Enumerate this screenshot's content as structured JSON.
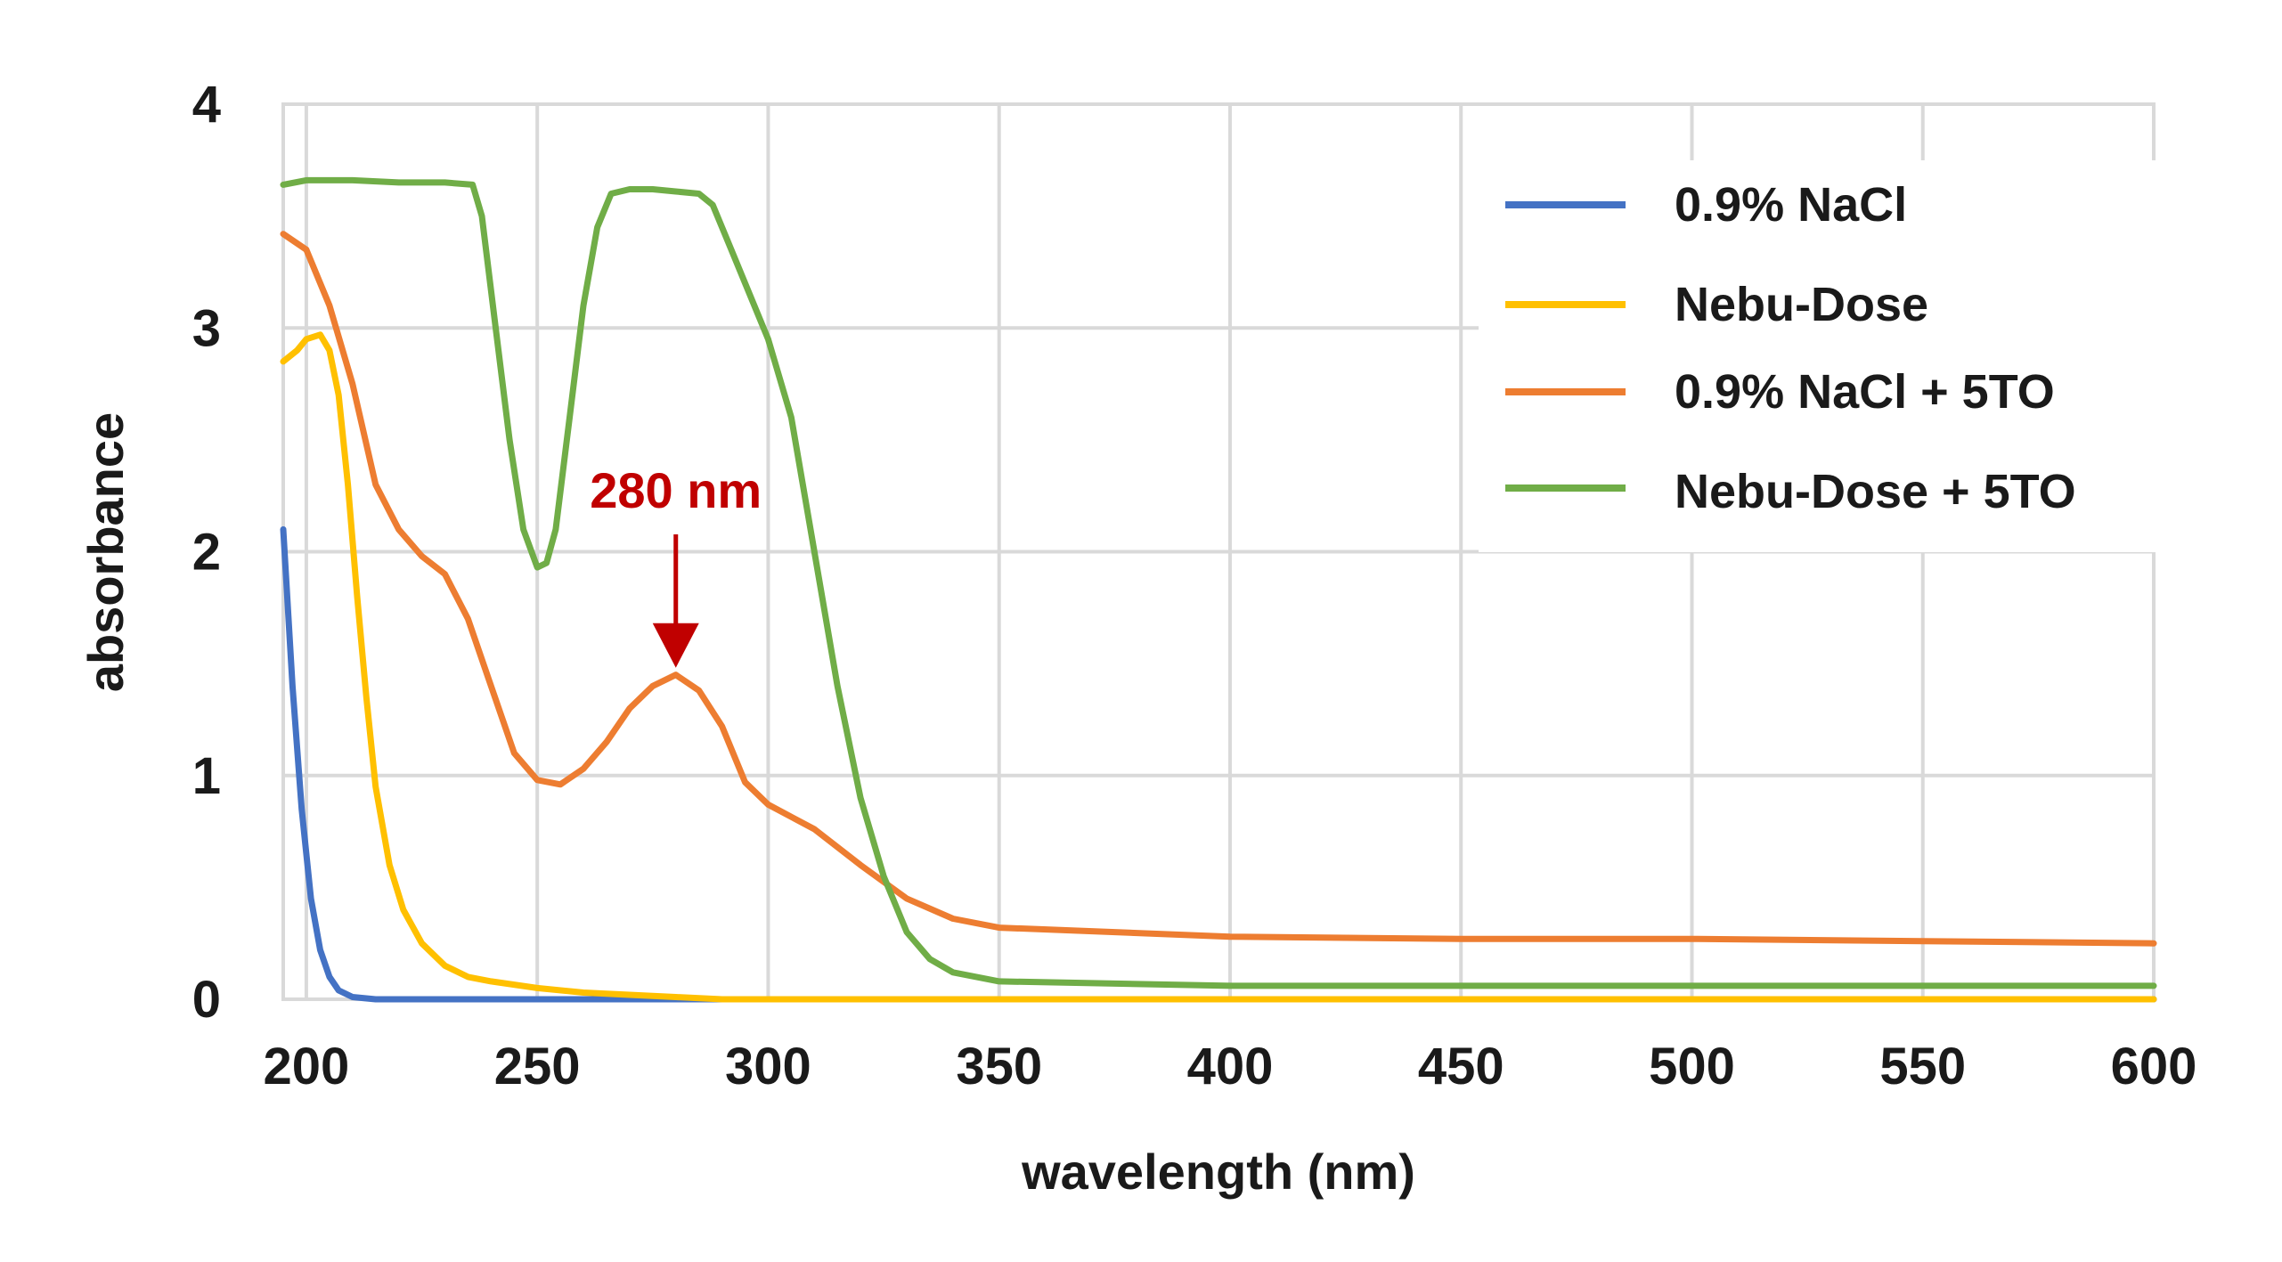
{
  "chart_data": {
    "type": "line",
    "title": "",
    "xlabel": "wavelength (nm)",
    "ylabel": "absorbance",
    "xlim": [
      195,
      600
    ],
    "ylim": [
      0,
      4
    ],
    "xticks": [
      200,
      250,
      300,
      350,
      400,
      450,
      500,
      550,
      600
    ],
    "yticks": [
      0,
      1,
      2,
      3,
      4
    ],
    "grid": true,
    "legend_position": "top-right",
    "series": [
      {
        "name": "0.9% NaCl",
        "color": "#4472c4",
        "x": [
          195,
          197,
          199,
          201,
          203,
          205,
          207,
          210,
          215,
          220,
          250,
          300,
          400,
          500,
          600
        ],
        "y": [
          2.1,
          1.4,
          0.85,
          0.45,
          0.22,
          0.1,
          0.04,
          0.01,
          0.0,
          0.0,
          0.0,
          0.0,
          0.0,
          0.0,
          0.0
        ]
      },
      {
        "name": "Nebu-Dose",
        "color": "#ffc000",
        "x": [
          195,
          198,
          200,
          203,
          205,
          207,
          209,
          211,
          213,
          215,
          218,
          221,
          225,
          230,
          235,
          240,
          250,
          260,
          270,
          280,
          290,
          300,
          350,
          400,
          500,
          600
        ],
        "y": [
          2.85,
          2.9,
          2.95,
          2.97,
          2.9,
          2.7,
          2.3,
          1.8,
          1.35,
          0.95,
          0.6,
          0.4,
          0.25,
          0.15,
          0.1,
          0.08,
          0.05,
          0.03,
          0.02,
          0.01,
          0.0,
          0.0,
          0.0,
          0.0,
          0.0,
          0.0
        ]
      },
      {
        "name": "0.9% NaCl + 5TO",
        "color": "#ed7d31",
        "x": [
          195,
          200,
          205,
          210,
          215,
          220,
          225,
          230,
          235,
          240,
          245,
          250,
          255,
          260,
          265,
          270,
          275,
          280,
          285,
          290,
          295,
          300,
          310,
          320,
          330,
          340,
          350,
          400,
          450,
          500,
          550,
          600
        ],
        "y": [
          3.42,
          3.35,
          3.1,
          2.75,
          2.3,
          2.1,
          1.98,
          1.9,
          1.7,
          1.4,
          1.1,
          0.98,
          0.96,
          1.03,
          1.15,
          1.3,
          1.4,
          1.45,
          1.38,
          1.22,
          0.97,
          0.87,
          0.76,
          0.6,
          0.45,
          0.36,
          0.32,
          0.28,
          0.27,
          0.27,
          0.26,
          0.25
        ]
      },
      {
        "name": "Nebu-Dose + 5TO",
        "color": "#70ad47",
        "x": [
          195,
          200,
          210,
          220,
          230,
          236,
          238,
          241,
          244,
          247,
          250,
          252,
          254,
          257,
          260,
          263,
          266,
          270,
          275,
          280,
          285,
          288,
          292,
          296,
          300,
          305,
          310,
          315,
          320,
          325,
          330,
          335,
          340,
          350,
          400,
          450,
          500,
          600
        ],
        "y": [
          3.64,
          3.66,
          3.66,
          3.65,
          3.65,
          3.64,
          3.5,
          3.0,
          2.5,
          2.1,
          1.93,
          1.95,
          2.1,
          2.6,
          3.1,
          3.45,
          3.6,
          3.62,
          3.62,
          3.61,
          3.6,
          3.55,
          3.35,
          3.15,
          2.95,
          2.6,
          2.0,
          1.4,
          0.9,
          0.55,
          0.3,
          0.18,
          0.12,
          0.08,
          0.06,
          0.06,
          0.06,
          0.06
        ]
      }
    ],
    "annotations": [
      {
        "text": "280 nm",
        "x": 280,
        "y": 1.45,
        "color": "#c00000",
        "type": "arrow-down"
      }
    ]
  }
}
